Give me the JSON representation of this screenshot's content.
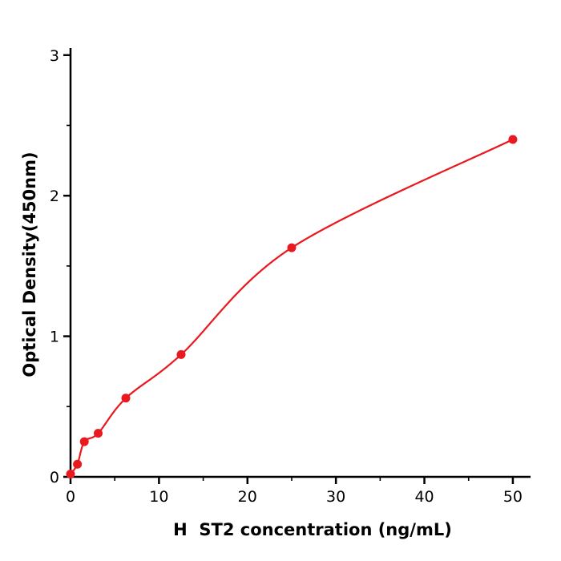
{
  "chart_data": {
    "type": "scatter",
    "title": "",
    "xlabel": "H  ST2 concentration (ng/mL)",
    "ylabel": "Optical Density(450nm)",
    "x": [
      0,
      0.78,
      1.56,
      3.125,
      6.25,
      12.5,
      25,
      50
    ],
    "y": [
      0.02,
      0.09,
      0.25,
      0.31,
      0.56,
      0.87,
      1.63,
      2.4
    ],
    "xlim": [
      0,
      52
    ],
    "ylim": [
      0,
      3.05
    ],
    "x_major_ticks": [
      0,
      10,
      20,
      30,
      40,
      50
    ],
    "x_minor_ticks": [
      5,
      15,
      25,
      35,
      45
    ],
    "y_major_ticks": [
      0,
      1,
      2,
      3
    ],
    "y_minor_ticks": [
      0.5,
      1.5,
      2.5
    ],
    "point_color": "#e8191f",
    "line_color": "#e8191f",
    "axis_color": "#000000",
    "grid": false,
    "legend": null
  }
}
